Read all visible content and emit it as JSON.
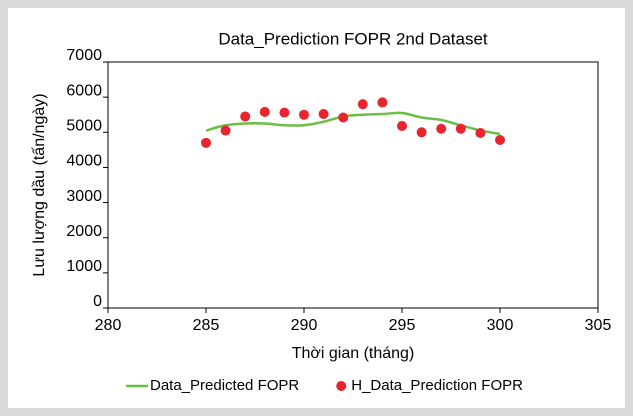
{
  "chart_data": {
    "type": "line",
    "title": "Data_Prediction FOPR 2nd Dataset",
    "xlabel": "Thời gian (tháng)",
    "ylabel": "Lưu lượng dầu (tấn/ngày)",
    "x": [
      285,
      286,
      287,
      288,
      289,
      290,
      291,
      292,
      293,
      294,
      295,
      296,
      297,
      298,
      299,
      300
    ],
    "series": [
      {
        "name": "Data_Predicted FOPR",
        "type": "line",
        "color": "#6abf45",
        "values": [
          5050,
          5200,
          5250,
          5250,
          5200,
          5200,
          5300,
          5450,
          5500,
          5520,
          5550,
          5420,
          5350,
          5200,
          5050,
          4950
        ]
      },
      {
        "name": "H_Data_Prediction FOPR",
        "type": "scatter",
        "color": "#e8242e",
        "values": [
          4700,
          5050,
          5450,
          5580,
          5560,
          5500,
          5520,
          5420,
          5800,
          5850,
          5180,
          5000,
          5100,
          5100,
          4980,
          4780
        ]
      }
    ],
    "xlim": [
      280,
      305
    ],
    "xticks": [
      280,
      285,
      290,
      295,
      300,
      305
    ],
    "ylim": [
      0,
      7000
    ],
    "yticks": [
      0,
      1000,
      2000,
      3000,
      4000,
      5000,
      6000,
      7000
    ],
    "grid": false,
    "legend": "bottom"
  }
}
